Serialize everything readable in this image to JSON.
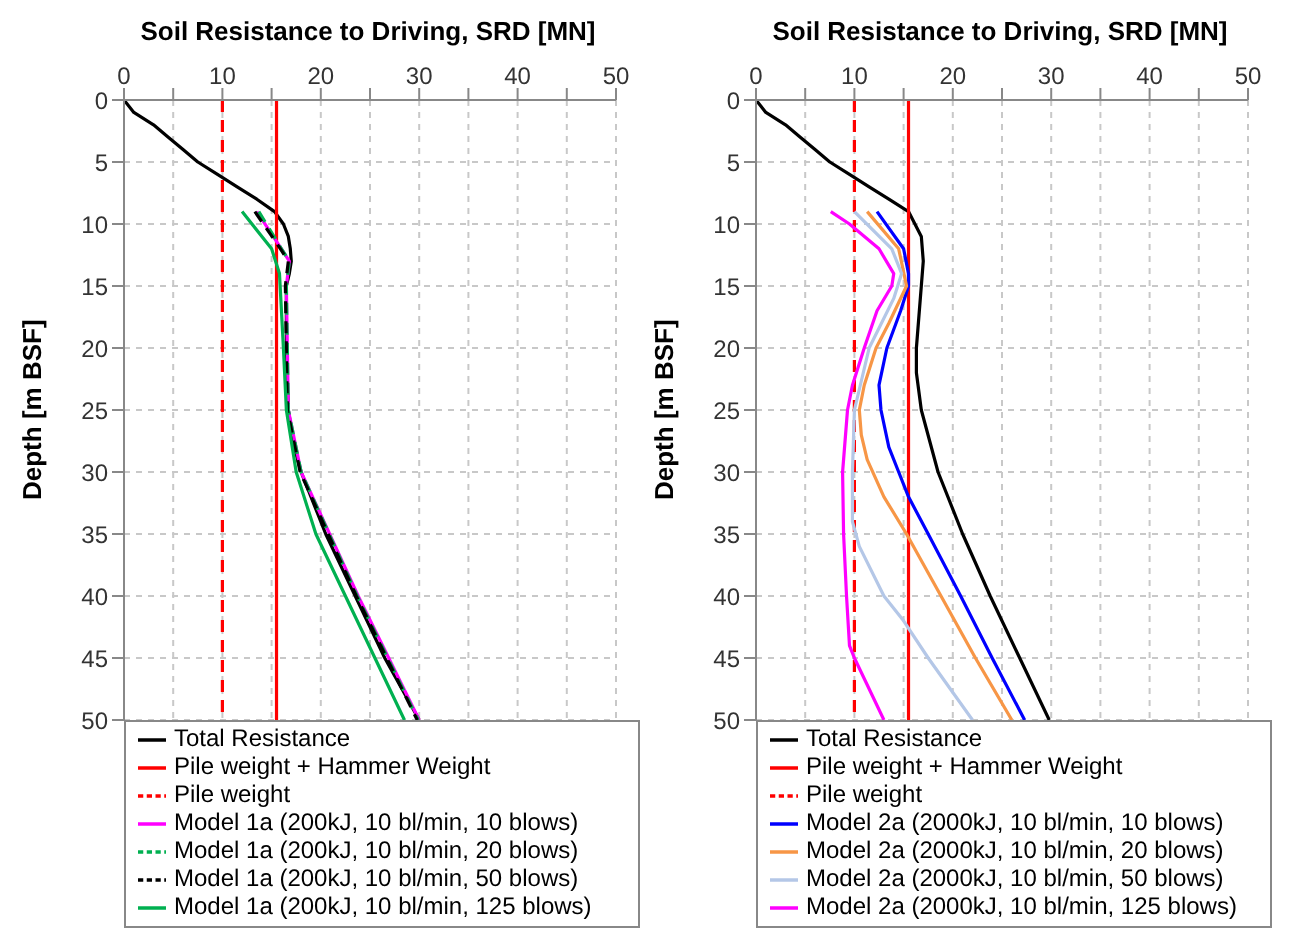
{
  "chart_data": [
    {
      "type": "line",
      "xlabel": "Soil Resistance to Driving, SRD [MN]",
      "ylabel": "Depth [m BSF]",
      "xlim": [
        0,
        50
      ],
      "xticks": [
        0,
        {
          "value": 5,
          "label": null
        },
        10,
        {
          "value": 15,
          "label": null
        },
        20,
        {
          "value": 25,
          "label": null
        },
        30,
        {
          "value": 35,
          "label": null
        },
        40,
        {
          "value": 45,
          "label": null
        },
        50
      ],
      "ylim": [
        50,
        0
      ],
      "yticks": [
        0,
        5,
        10,
        15,
        20,
        25,
        30,
        35,
        40,
        45,
        50
      ],
      "grid": true,
      "legend": "bottom",
      "marker": "none",
      "series": [
        {
          "name": "Total Resistance",
          "color": "#000000",
          "x": [
            0,
            1,
            3,
            4.5,
            6,
            7.5,
            9.5,
            11.5,
            13.5,
            15.3,
            16.2,
            16.7,
            16.9,
            17,
            16.8,
            16.5,
            16.5,
            16.7,
            17.3,
            18,
            20.5,
            23.5,
            26.5,
            30
          ],
          "values": [
            0,
            1,
            2,
            3,
            4,
            5,
            6,
            7,
            8,
            9,
            10,
            11,
            12,
            13,
            14,
            15,
            20,
            25,
            28,
            30,
            35,
            40,
            45,
            50
          ]
        },
        {
          "name": "Pile weight + Hammer Weight",
          "color": "#ff0000",
          "x": [
            15.5,
            15.5
          ],
          "values": [
            0,
            50
          ]
        },
        {
          "name": "Pile weight",
          "color": "#ff0000",
          "line_style": "dashed",
          "x": [
            10,
            10
          ],
          "values": [
            0,
            50
          ]
        },
        {
          "name": "Model 1a (200kJ, 10 bl/min, 10 blows)",
          "color": "#ff00ff",
          "x": [
            13.5,
            16,
            16.8,
            16.5,
            16.7,
            18,
            23.8,
            30
          ],
          "values": [
            9,
            12,
            13,
            15,
            25,
            30,
            40,
            50
          ]
        },
        {
          "name": "Model 1a (200kJ, 10 bl/min, 20 blows)",
          "color": "#00b050",
          "line_style": "dashed",
          "x": [
            13.7,
            16,
            16.8,
            16.5,
            16.7,
            18,
            23.7,
            29.9
          ],
          "values": [
            9,
            12,
            13,
            15,
            25,
            30,
            40,
            50
          ]
        },
        {
          "name": "Model 1a (200kJ, 10 bl/min, 50 blows)",
          "color": "#000000",
          "line_style": "dashed",
          "x": [
            13.3,
            15.9,
            16.7,
            16.4,
            16.6,
            17.9,
            23.6,
            29.8
          ],
          "values": [
            9,
            12,
            13,
            15,
            25,
            30,
            40,
            50
          ]
        },
        {
          "name": "Model 1a (200kJ, 10 bl/min, 125 blows)",
          "color": "#00b050",
          "x": [
            12,
            15,
            15.8,
            16.2,
            16.5,
            17.5,
            19.5,
            22.5,
            25.5,
            28.5
          ],
          "values": [
            9,
            12,
            14,
            20,
            25,
            30,
            35,
            40,
            45,
            50
          ]
        }
      ]
    },
    {
      "type": "line",
      "xlabel": "Soil Resistance to Driving, SRD [MN]",
      "ylabel": "Depth [m BSF]",
      "xlim": [
        0,
        50
      ],
      "xticks": [
        0,
        {
          "value": 5,
          "label": null
        },
        10,
        {
          "value": 15,
          "label": null
        },
        20,
        {
          "value": 25,
          "label": null
        },
        30,
        {
          "value": 35,
          "label": null
        },
        40,
        {
          "value": 45,
          "label": null
        },
        50
      ],
      "ylim": [
        50,
        0
      ],
      "yticks": [
        0,
        5,
        10,
        15,
        20,
        25,
        30,
        35,
        40,
        45,
        50
      ],
      "grid": true,
      "legend": "bottom",
      "marker": "none",
      "series": [
        {
          "name": "Total Resistance",
          "color": "#000000",
          "x": [
            0,
            1,
            3,
            4.5,
            6,
            7.5,
            9.5,
            11.5,
            13.5,
            15.5,
            16.8,
            17,
            16.8,
            16.3,
            16.3,
            16.8,
            18.5,
            21,
            23.8,
            26.8,
            29.8
          ],
          "values": [
            0,
            1,
            2,
            3,
            4,
            5,
            6,
            7,
            8,
            9,
            11,
            13,
            15,
            20,
            22,
            25,
            30,
            35,
            40,
            45,
            50
          ]
        },
        {
          "name": "Pile weight + Hammer Weight",
          "color": "#ff0000",
          "x": [
            15.5,
            15.5
          ],
          "values": [
            0,
            50
          ]
        },
        {
          "name": "Pile weight",
          "color": "#ff0000",
          "line_style": "dashed",
          "x": [
            10,
            10
          ],
          "values": [
            0,
            50
          ]
        },
        {
          "name": "Model 2a (2000kJ, 10 bl/min, 10 blows)",
          "color": "#0000ff",
          "x": [
            12.3,
            15,
            15.5,
            15.5,
            14.7,
            13.3,
            12.5,
            12.7,
            13.5,
            14.5,
            15.5,
            17.5,
            20.8,
            24,
            27.3
          ],
          "values": [
            9,
            12,
            14,
            15,
            17,
            20,
            23,
            25,
            28,
            30,
            32,
            35,
            40,
            45,
            50
          ]
        },
        {
          "name": "Model 2a (2000kJ, 10 bl/min, 20 blows)",
          "color": "#f79646",
          "x": [
            11.3,
            14.5,
            15.3,
            13.5,
            12.2,
            11,
            10.5,
            10.7,
            11.3,
            13,
            15.3,
            18.8,
            22.3,
            26
          ],
          "values": [
            9,
            12,
            15,
            18,
            20,
            23,
            25,
            27,
            29,
            32,
            35,
            40,
            45,
            50
          ]
        },
        {
          "name": "Model 2a (2000kJ, 10 bl/min, 50 blows)",
          "color": "#b4c7e7",
          "x": [
            10,
            13.8,
            14.8,
            14,
            11.5,
            10,
            9.8,
            9.8,
            10.5,
            13,
            15,
            17.5,
            22
          ],
          "values": [
            9,
            12,
            14,
            16,
            20,
            25,
            30,
            34,
            36,
            40,
            42,
            45,
            50
          ]
        },
        {
          "name": "Model 2a (2000kJ, 10 bl/min, 125 blows)",
          "color": "#ff00ff",
          "x": [
            7.6,
            9.5,
            12.5,
            14,
            13.8,
            12.3,
            11,
            9.8,
            9.3,
            8.8,
            8.9,
            9.2,
            9.5,
            10,
            11.2,
            13
          ],
          "values": [
            9,
            10,
            12,
            14,
            15,
            17,
            20,
            23,
            25,
            30,
            35,
            40,
            44,
            45,
            47,
            50
          ]
        }
      ]
    }
  ]
}
